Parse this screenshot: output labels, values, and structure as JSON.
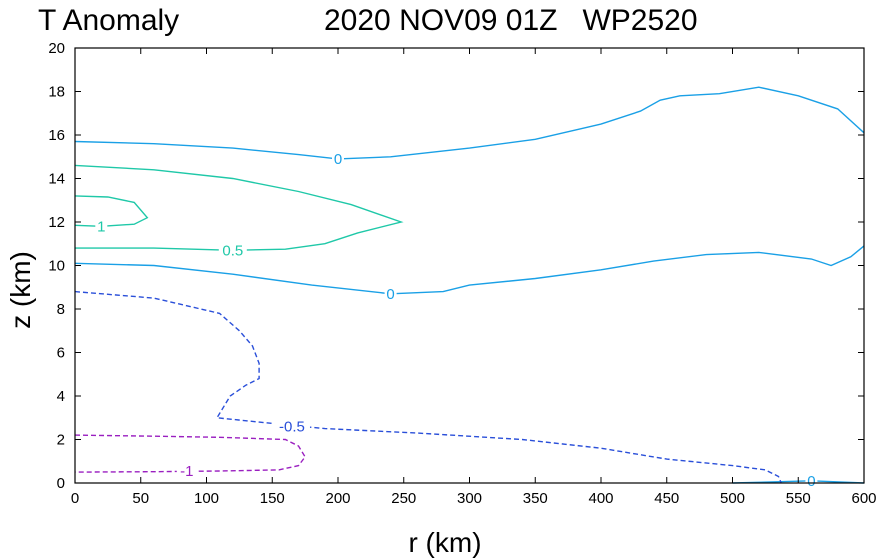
{
  "title": {
    "left": "T Anomaly",
    "right": "2020 NOV09 01Z   WP2520"
  },
  "chart_data": {
    "type": "contour",
    "title": "T Anomaly      2020 NOV09 01Z   WP2520",
    "xlabel": "r (km)",
    "ylabel": "z (km)",
    "xlim": [
      0,
      600
    ],
    "ylim": [
      0,
      20
    ],
    "xticks": [
      "0",
      "50",
      "100",
      "150",
      "200",
      "250",
      "300",
      "350",
      "400",
      "450",
      "500",
      "550",
      "600"
    ],
    "yticks": [
      "0",
      "2",
      "4",
      "6",
      "8",
      "10",
      "12",
      "14",
      "16",
      "18",
      "20"
    ],
    "grid": false,
    "legend": "none",
    "contours": [
      {
        "level": "0",
        "style": "solid",
        "color": "#1aa0e6",
        "label_at": [
          200,
          14.9
        ],
        "points": [
          [
            0,
            15.7
          ],
          [
            60,
            15.6
          ],
          [
            120,
            15.4
          ],
          [
            170,
            15.1
          ],
          [
            200,
            14.9
          ],
          [
            240,
            15.0
          ],
          [
            300,
            15.4
          ],
          [
            350,
            15.8
          ],
          [
            400,
            16.5
          ],
          [
            430,
            17.1
          ],
          [
            445,
            17.6
          ],
          [
            460,
            17.8
          ],
          [
            490,
            17.9
          ],
          [
            520,
            18.2
          ],
          [
            550,
            17.8
          ],
          [
            580,
            17.2
          ],
          [
            600,
            16.1
          ]
        ]
      },
      {
        "level": "0",
        "style": "solid",
        "color": "#1aa0e6",
        "label_at": [
          240,
          8.7
        ],
        "points": [
          [
            0,
            10.1
          ],
          [
            60,
            10.0
          ],
          [
            120,
            9.6
          ],
          [
            180,
            9.1
          ],
          [
            240,
            8.7
          ],
          [
            280,
            8.8
          ],
          [
            300,
            9.1
          ],
          [
            350,
            9.4
          ],
          [
            400,
            9.8
          ],
          [
            440,
            10.2
          ],
          [
            480,
            10.5
          ],
          [
            520,
            10.6
          ],
          [
            560,
            10.3
          ],
          [
            575,
            10.0
          ],
          [
            590,
            10.4
          ],
          [
            600,
            10.9
          ]
        ]
      },
      {
        "level": "0",
        "style": "solid",
        "color": "#1aa0e6",
        "label_at": [
          560,
          0.1
        ],
        "points": [
          [
            500,
            0.0
          ],
          [
            560,
            0.1
          ],
          [
            600,
            0.0
          ]
        ]
      },
      {
        "level": "0.5",
        "style": "solid",
        "color": "#1fc8a8",
        "label_at": [
          120,
          10.7
        ],
        "points": [
          [
            0,
            14.6
          ],
          [
            60,
            14.4
          ],
          [
            120,
            14.0
          ],
          [
            170,
            13.4
          ],
          [
            210,
            12.8
          ],
          [
            248,
            12.0
          ],
          [
            215,
            11.5
          ],
          [
            190,
            11.0
          ],
          [
            160,
            10.75
          ],
          [
            120,
            10.7
          ],
          [
            60,
            10.8
          ],
          [
            0,
            10.8
          ]
        ]
      },
      {
        "level": "1",
        "style": "solid",
        "color": "#1fc8a8",
        "label_at": [
          20,
          11.8
        ],
        "points": [
          [
            0,
            13.2
          ],
          [
            25,
            13.15
          ],
          [
            45,
            12.9
          ],
          [
            55,
            12.2
          ],
          [
            45,
            11.9
          ],
          [
            20,
            11.8
          ],
          [
            0,
            11.85
          ]
        ]
      },
      {
        "level": "-0.5",
        "style": "dashed",
        "color": "#2a4fd9",
        "label_at": [
          165,
          2.6
        ],
        "points": [
          [
            0,
            8.8
          ],
          [
            60,
            8.5
          ],
          [
            110,
            7.8
          ],
          [
            125,
            7.0
          ],
          [
            135,
            6.3
          ],
          [
            140,
            5.5
          ],
          [
            140,
            4.8
          ],
          [
            130,
            4.5
          ],
          [
            118,
            4.0
          ],
          [
            108,
            3.0
          ],
          [
            140,
            2.8
          ],
          [
            190,
            2.5
          ],
          [
            260,
            2.3
          ],
          [
            340,
            2.0
          ],
          [
            400,
            1.6
          ],
          [
            450,
            1.1
          ],
          [
            500,
            0.8
          ],
          [
            525,
            0.6
          ],
          [
            535,
            0.3
          ],
          [
            537,
            0.0
          ]
        ]
      },
      {
        "level": "-1",
        "style": "dashed",
        "color": "#9a1fc0",
        "label_at": [
          85,
          0.55
        ],
        "points": [
          [
            0,
            2.2
          ],
          [
            60,
            2.15
          ],
          [
            110,
            2.1
          ],
          [
            160,
            2.0
          ],
          [
            170,
            1.7
          ],
          [
            175,
            1.2
          ],
          [
            170,
            0.8
          ],
          [
            155,
            0.6
          ],
          [
            110,
            0.55
          ],
          [
            60,
            0.52
          ],
          [
            0,
            0.5
          ]
        ]
      }
    ]
  }
}
